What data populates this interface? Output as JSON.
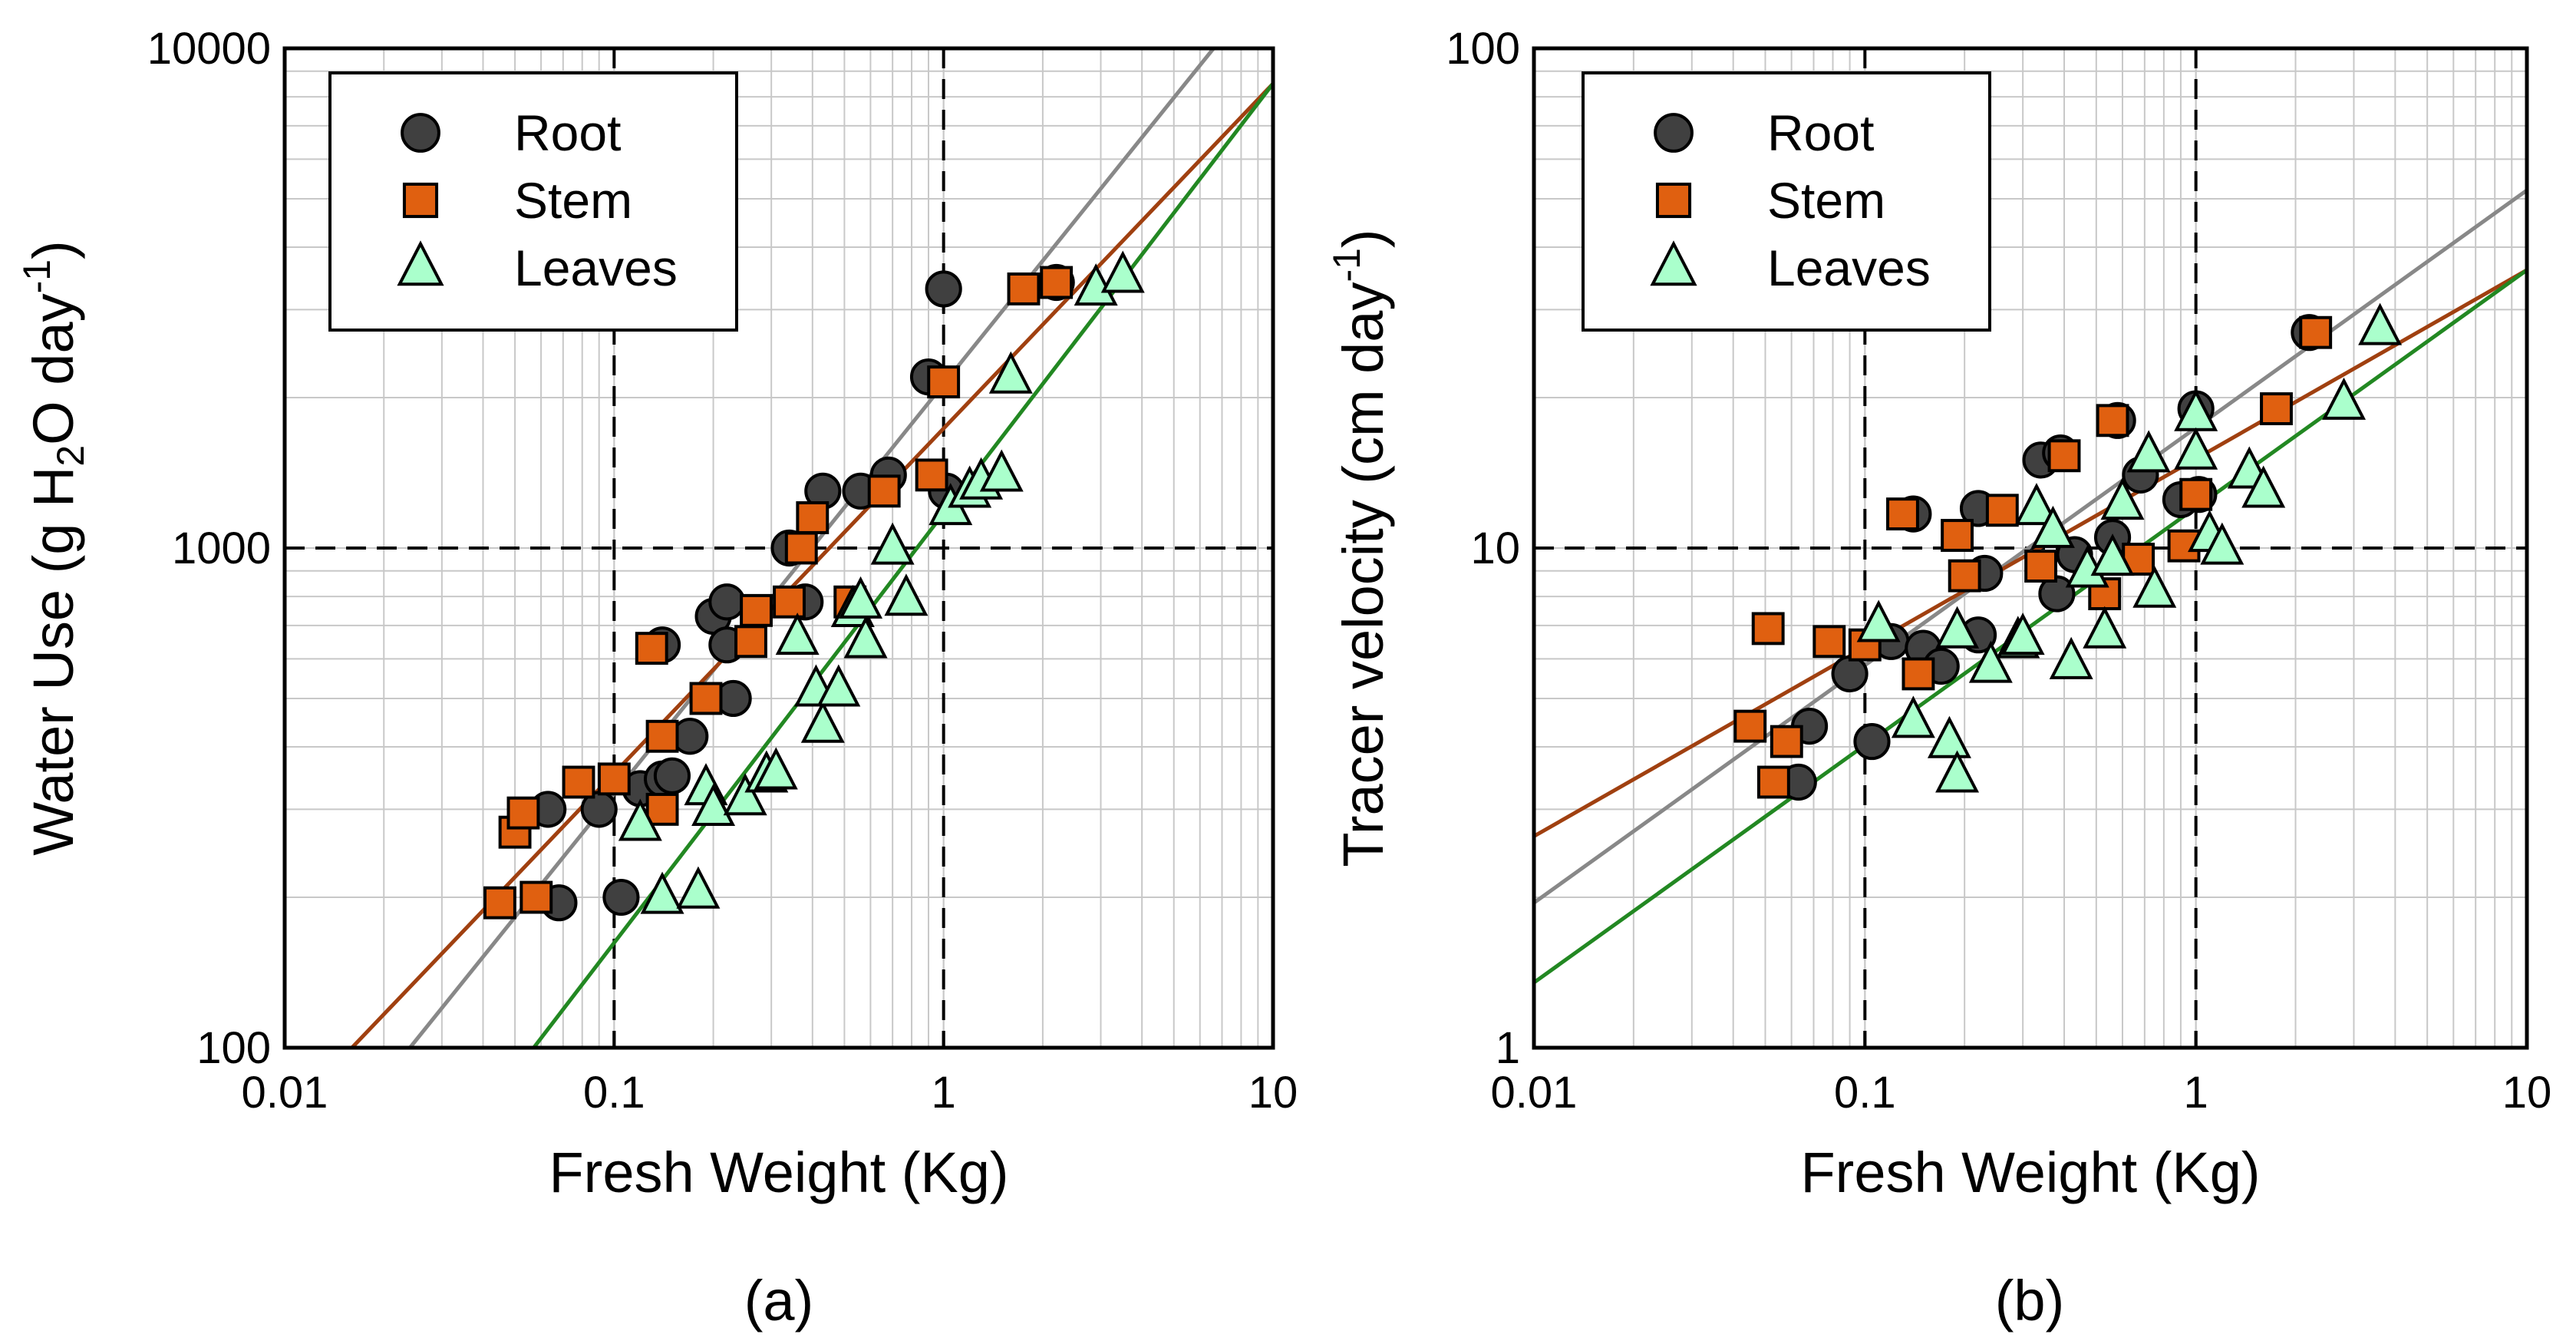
{
  "chart_data": [
    {
      "type": "scatter",
      "panel_label": "(a)",
      "title": "",
      "xlabel": "Fresh Weight (Kg)",
      "ylabel": {
        "prefix": "Water Use (g H",
        "sub": "2",
        "middle": "O day",
        "sup": "-1",
        "suffix": ")"
      },
      "xscale": "log",
      "yscale": "log",
      "xlim": [
        0.01,
        10
      ],
      "ylim": [
        100,
        10000
      ],
      "x_ticks": [
        0.01,
        0.1,
        1,
        10
      ],
      "x_tick_labels": [
        "0.01",
        "0.1",
        "1",
        "10"
      ],
      "y_ticks": [
        100,
        1000,
        10000
      ],
      "y_tick_labels": [
        "100",
        "1000",
        "10000"
      ],
      "grid": true,
      "reference_lines": {
        "vertical_dashed": [
          0.1,
          1
        ],
        "horizontal_dashed": [
          1000
        ]
      },
      "legend": {
        "position": "top-left",
        "entries": [
          "Root",
          "Stem",
          "Leaves"
        ]
      },
      "series": [
        {
          "name": "Root",
          "marker": "circle",
          "fill": "#404040",
          "line_color": "#888888",
          "fit": [
            [
              0.024,
              100
            ],
            [
              6.6,
              10000
            ]
          ],
          "points": [
            [
              0.063,
              300
            ],
            [
              0.068,
              195
            ],
            [
              0.09,
              300
            ],
            [
              0.105,
              200
            ],
            [
              0.12,
              330
            ],
            [
              0.14,
              640
            ],
            [
              0.14,
              345
            ],
            [
              0.15,
              350
            ],
            [
              0.17,
              420
            ],
            [
              0.2,
              730
            ],
            [
              0.22,
              780
            ],
            [
              0.22,
              640
            ],
            [
              0.23,
              500
            ],
            [
              0.34,
              1000
            ],
            [
              0.38,
              780
            ],
            [
              0.43,
              1300
            ],
            [
              0.56,
              1300
            ],
            [
              0.68,
              1400
            ],
            [
              0.9,
              2200
            ],
            [
              1.0,
              3300
            ],
            [
              1.02,
              1300
            ],
            [
              2.2,
              3400
            ]
          ]
        },
        {
          "name": "Stem",
          "marker": "square",
          "fill": "#E06010",
          "line_color": "#A04010",
          "fit": [
            [
              0.016,
              100
            ],
            [
              10,
              8500
            ]
          ],
          "points": [
            [
              0.045,
              195
            ],
            [
              0.05,
              270
            ],
            [
              0.053,
              295
            ],
            [
              0.058,
              200
            ],
            [
              0.078,
              340
            ],
            [
              0.1,
              345
            ],
            [
              0.13,
              630
            ],
            [
              0.14,
              420
            ],
            [
              0.14,
              300
            ],
            [
              0.19,
              500
            ],
            [
              0.26,
              650
            ],
            [
              0.27,
              750
            ],
            [
              0.34,
              780
            ],
            [
              0.37,
              1000
            ],
            [
              0.4,
              1150
            ],
            [
              0.52,
              780
            ],
            [
              0.66,
              1300
            ],
            [
              0.92,
              1400
            ],
            [
              1.0,
              2150
            ],
            [
              1.75,
              3300
            ],
            [
              2.2,
              3400
            ]
          ]
        },
        {
          "name": "Leaves",
          "marker": "triangle",
          "fill": "#AAFFCC",
          "line_color": "#228822",
          "fit": [
            [
              0.057,
              100
            ],
            [
              10,
              8500
            ]
          ],
          "points": [
            [
              0.12,
              280
            ],
            [
              0.14,
              200
            ],
            [
              0.18,
              205
            ],
            [
              0.19,
              330
            ],
            [
              0.2,
              300
            ],
            [
              0.25,
              315
            ],
            [
              0.29,
              350
            ],
            [
              0.31,
              355
            ],
            [
              0.36,
              660
            ],
            [
              0.41,
              520
            ],
            [
              0.43,
              440
            ],
            [
              0.48,
              520
            ],
            [
              0.53,
              750
            ],
            [
              0.56,
              780
            ],
            [
              0.58,
              650
            ],
            [
              0.7,
              1000
            ],
            [
              0.77,
              790
            ],
            [
              1.05,
              1200
            ],
            [
              1.2,
              1300
            ],
            [
              1.3,
              1350
            ],
            [
              1.5,
              1400
            ],
            [
              1.6,
              2200
            ],
            [
              2.9,
              3300
            ],
            [
              3.5,
              3500
            ]
          ]
        }
      ]
    },
    {
      "type": "scatter",
      "panel_label": "(b)",
      "title": "",
      "xlabel": "Fresh Weight (Kg)",
      "ylabel": {
        "prefix": "Tracer velocity (cm day",
        "sub": "",
        "middle": "",
        "sup": "-1",
        "suffix": ")"
      },
      "xscale": "log",
      "yscale": "log",
      "xlim": [
        0.01,
        10
      ],
      "ylim": [
        1,
        100
      ],
      "x_ticks": [
        0.01,
        0.1,
        1,
        10
      ],
      "x_tick_labels": [
        "0.01",
        "0.1",
        "1",
        "10"
      ],
      "y_ticks": [
        1,
        10,
        100
      ],
      "y_tick_labels": [
        "1",
        "10",
        "100"
      ],
      "grid": true,
      "reference_lines": {
        "vertical_dashed": [
          0.1,
          1
        ],
        "horizontal_dashed": [
          10
        ]
      },
      "legend": {
        "position": "top-left",
        "entries": [
          "Root",
          "Stem",
          "Leaves"
        ]
      },
      "series": [
        {
          "name": "Root",
          "marker": "circle",
          "fill": "#404040",
          "line_color": "#888888",
          "fit": [
            [
              0.01,
              1.95
            ],
            [
              10,
              52
            ]
          ],
          "points": [
            [
              0.063,
              3.4
            ],
            [
              0.068,
              4.4
            ],
            [
              0.09,
              5.6
            ],
            [
              0.105,
              4.1
            ],
            [
              0.12,
              6.5
            ],
            [
              0.14,
              11.7
            ],
            [
              0.15,
              6.3
            ],
            [
              0.17,
              5.8
            ],
            [
              0.22,
              12
            ],
            [
              0.22,
              6.7
            ],
            [
              0.23,
              8.9
            ],
            [
              0.34,
              15
            ],
            [
              0.38,
              8.1
            ],
            [
              0.39,
              15.5
            ],
            [
              0.43,
              9.7
            ],
            [
              0.56,
              10.5
            ],
            [
              0.58,
              18
            ],
            [
              0.68,
              14
            ],
            [
              0.9,
              12.5
            ],
            [
              1.0,
              19
            ],
            [
              1.02,
              12.8
            ],
            [
              2.2,
              27
            ]
          ]
        },
        {
          "name": "Stem",
          "marker": "square",
          "fill": "#E06010",
          "line_color": "#A04010",
          "fit": [
            [
              0.01,
              2.65
            ],
            [
              10,
              36
            ]
          ],
          "points": [
            [
              0.045,
              4.4
            ],
            [
              0.051,
              6.9
            ],
            [
              0.053,
              3.4
            ],
            [
              0.058,
              4.1
            ],
            [
              0.078,
              6.5
            ],
            [
              0.1,
              6.4
            ],
            [
              0.13,
              11.7
            ],
            [
              0.145,
              5.6
            ],
            [
              0.19,
              10.6
            ],
            [
              0.2,
              8.8
            ],
            [
              0.26,
              11.9
            ],
            [
              0.34,
              9.2
            ],
            [
              0.4,
              15.3
            ],
            [
              0.53,
              8.1
            ],
            [
              0.56,
              18
            ],
            [
              0.67,
              9.5
            ],
            [
              0.92,
              10.1
            ],
            [
              1.0,
              12.8
            ],
            [
              1.75,
              19
            ],
            [
              2.3,
              27
            ]
          ]
        },
        {
          "name": "Leaves",
          "marker": "triangle",
          "fill": "#AAFFCC",
          "line_color": "#228822",
          "fit": [
            [
              0.01,
              1.35
            ],
            [
              10,
              36
            ]
          ],
          "points": [
            [
              0.11,
              7.0
            ],
            [
              0.14,
              4.5
            ],
            [
              0.18,
              4.1
            ],
            [
              0.19,
              3.5
            ],
            [
              0.19,
              6.8
            ],
            [
              0.24,
              5.8
            ],
            [
              0.29,
              6.5
            ],
            [
              0.3,
              6.6
            ],
            [
              0.33,
              12
            ],
            [
              0.37,
              10.8
            ],
            [
              0.42,
              5.9
            ],
            [
              0.47,
              9.0
            ],
            [
              0.53,
              6.8
            ],
            [
              0.56,
              9.5
            ],
            [
              0.6,
              12.3
            ],
            [
              0.72,
              15.3
            ],
            [
              0.75,
              8.2
            ],
            [
              1.0,
              18.5
            ],
            [
              1.0,
              15.5
            ],
            [
              1.1,
              10.6
            ],
            [
              1.2,
              10.0
            ],
            [
              1.45,
              14.2
            ],
            [
              1.6,
              13
            ],
            [
              2.8,
              19.5
            ],
            [
              3.6,
              27.5
            ]
          ]
        }
      ]
    }
  ]
}
